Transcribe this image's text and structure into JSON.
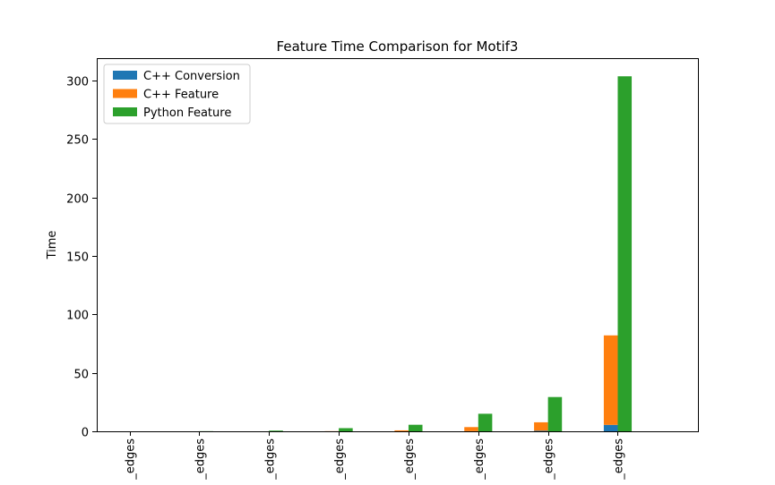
{
  "chart_data": {
    "type": "bar",
    "title": "Feature Time Comparison for Motif3",
    "xlabel": "",
    "ylabel": "Time",
    "categories": [
      "_edges",
      "_edges",
      "_edges",
      "_edges",
      "_edges",
      "_edges",
      "_edges",
      "_edges"
    ],
    "series": [
      {
        "name": "C++ Conversion",
        "values": [
          0,
          0,
          0,
          0,
          0,
          0.1,
          0.5,
          5.5
        ],
        "color": "#1f77b4"
      },
      {
        "name": "C++ Feature",
        "values": [
          0,
          0,
          0,
          0.1,
          0.8,
          3.5,
          7.2,
          76.5
        ],
        "color": "#ff7f0e"
      },
      {
        "name": "Python Feature",
        "values": [
          0,
          0.1,
          0.6,
          2.7,
          5.6,
          15.0,
          29.3,
          303.5
        ],
        "color": "#2ca02c"
      }
    ],
    "stacked_series": [
      "C++ Conversion",
      "C++ Feature"
    ],
    "ylim": [
      0,
      319
    ],
    "yticks": [
      0,
      50,
      100,
      150,
      200,
      250,
      300
    ],
    "legend_position": "upper-left",
    "grid": false
  }
}
